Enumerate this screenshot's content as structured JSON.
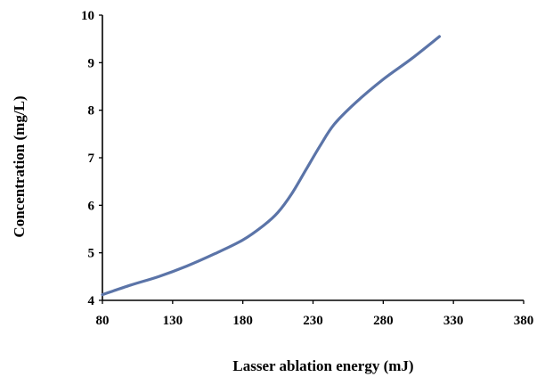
{
  "chart_data": {
    "type": "line",
    "title": "",
    "xlabel": "Lasser ablation energy (mJ)",
    "ylabel": "Concentration (mg/L)",
    "xlim": [
      80,
      380
    ],
    "ylim": [
      4,
      10
    ],
    "x_ticks": [
      "80",
      "130",
      "180",
      "230",
      "280",
      "330",
      "380"
    ],
    "y_ticks": [
      "4",
      "5",
      "6",
      "7",
      "8",
      "9",
      "10"
    ],
    "grid": false,
    "legend": "none",
    "series": [
      {
        "color": "#5b74a8",
        "x": [
          80,
          100,
          120,
          140,
          160,
          180,
          195,
          205,
          215,
          225,
          235,
          245,
          260,
          280,
          300,
          320
        ],
        "y": [
          4.12,
          4.32,
          4.5,
          4.72,
          4.98,
          5.27,
          5.58,
          5.85,
          6.25,
          6.75,
          7.25,
          7.7,
          8.15,
          8.65,
          9.08,
          9.55
        ]
      }
    ]
  }
}
